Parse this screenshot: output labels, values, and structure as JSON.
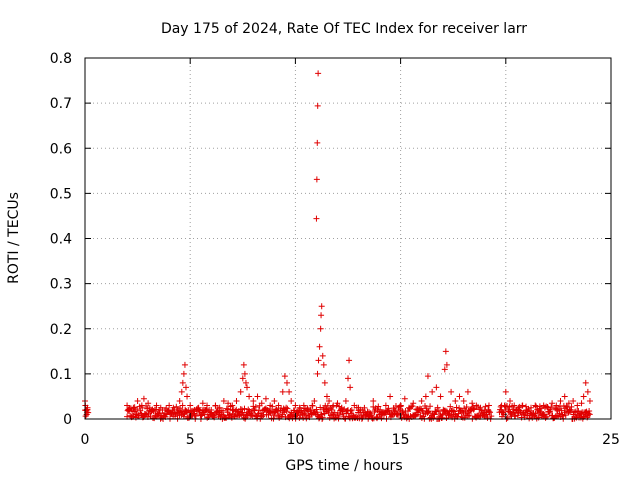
{
  "chart_data": {
    "type": "scatter",
    "title": "Day 175 of 2024, Rate Of TEC Index for receiver larr",
    "xlabel": "GPS time / hours",
    "ylabel": "ROTI / TECUs",
    "xlim": [
      0,
      25
    ],
    "ylim": [
      0,
      0.8
    ],
    "grid": true,
    "marker": "+",
    "color": "#e00000",
    "x_ticks": [
      {
        "value": 0,
        "label": "0"
      },
      {
        "value": 5,
        "label": "5"
      },
      {
        "value": 10,
        "label": "10"
      },
      {
        "value": 15,
        "label": "15"
      },
      {
        "value": 20,
        "label": "20"
      },
      {
        "value": 25,
        "label": "25"
      }
    ],
    "y_ticks": [
      {
        "value": 0,
        "label": "0"
      },
      {
        "value": 0.1,
        "label": "0.1"
      },
      {
        "value": 0.2,
        "label": "0.2"
      },
      {
        "value": 0.3,
        "label": "0.3"
      },
      {
        "value": 0.4,
        "label": "0.4"
      },
      {
        "value": 0.5,
        "label": "0.5"
      },
      {
        "value": 0.6,
        "label": "0.6"
      },
      {
        "value": 0.7,
        "label": "0.7"
      },
      {
        "value": 0.8,
        "label": "0.8"
      }
    ],
    "series": [
      {
        "name": "ROTI",
        "points": [
          [
            0.0,
            0.04
          ],
          [
            0.02,
            0.03
          ],
          [
            0.05,
            0.02
          ],
          [
            0.08,
            0.01
          ],
          [
            0.1,
            0.015
          ],
          [
            0.12,
            0.025
          ],
          [
            2.0,
            0.03
          ],
          [
            2.1,
            0.02
          ],
          [
            2.3,
            0.025
          ],
          [
            2.5,
            0.04
          ],
          [
            2.7,
            0.03
          ],
          [
            2.8,
            0.045
          ],
          [
            3.0,
            0.035
          ],
          [
            3.2,
            0.02
          ],
          [
            3.4,
            0.03
          ],
          [
            3.6,
            0.025
          ],
          [
            3.8,
            0.02
          ],
          [
            4.0,
            0.03
          ],
          [
            4.2,
            0.025
          ],
          [
            4.4,
            0.02
          ],
          [
            4.5,
            0.04
          ],
          [
            4.6,
            0.06
          ],
          [
            4.65,
            0.08
          ],
          [
            4.7,
            0.1
          ],
          [
            4.75,
            0.12
          ],
          [
            4.8,
            0.07
          ],
          [
            4.85,
            0.05
          ],
          [
            5.0,
            0.03
          ],
          [
            5.2,
            0.02
          ],
          [
            5.4,
            0.025
          ],
          [
            5.6,
            0.035
          ],
          [
            5.8,
            0.03
          ],
          [
            6.0,
            0.02
          ],
          [
            6.2,
            0.03
          ],
          [
            6.4,
            0.025
          ],
          [
            6.6,
            0.04
          ],
          [
            6.8,
            0.035
          ],
          [
            7.0,
            0.03
          ],
          [
            7.2,
            0.04
          ],
          [
            7.4,
            0.06
          ],
          [
            7.5,
            0.09
          ],
          [
            7.55,
            0.12
          ],
          [
            7.6,
            0.1
          ],
          [
            7.65,
            0.08
          ],
          [
            7.7,
            0.07
          ],
          [
            7.8,
            0.05
          ],
          [
            8.0,
            0.04
          ],
          [
            8.2,
            0.05
          ],
          [
            8.4,
            0.035
          ],
          [
            8.6,
            0.045
          ],
          [
            8.8,
            0.03
          ],
          [
            9.0,
            0.04
          ],
          [
            9.2,
            0.03
          ],
          [
            9.4,
            0.06
          ],
          [
            9.5,
            0.095
          ],
          [
            9.6,
            0.08
          ],
          [
            9.7,
            0.06
          ],
          [
            9.8,
            0.04
          ],
          [
            10.0,
            0.03
          ],
          [
            10.2,
            0.025
          ],
          [
            10.4,
            0.03
          ],
          [
            10.6,
            0.02
          ],
          [
            10.8,
            0.03
          ],
          [
            10.9,
            0.04
          ],
          [
            11.0,
            0.444
          ],
          [
            11.02,
            0.531
          ],
          [
            11.04,
            0.612
          ],
          [
            11.06,
            0.694
          ],
          [
            11.08,
            0.766
          ],
          [
            11.05,
            0.1
          ],
          [
            11.1,
            0.13
          ],
          [
            11.15,
            0.16
          ],
          [
            11.2,
            0.2
          ],
          [
            11.22,
            0.23
          ],
          [
            11.25,
            0.25
          ],
          [
            11.3,
            0.14
          ],
          [
            11.35,
            0.12
          ],
          [
            11.4,
            0.08
          ],
          [
            11.5,
            0.05
          ],
          [
            11.6,
            0.04
          ],
          [
            11.8,
            0.03
          ],
          [
            12.0,
            0.035
          ],
          [
            12.2,
            0.025
          ],
          [
            12.4,
            0.04
          ],
          [
            12.5,
            0.09
          ],
          [
            12.55,
            0.13
          ],
          [
            12.6,
            0.07
          ],
          [
            12.8,
            0.03
          ],
          [
            13.0,
            0.025
          ],
          [
            13.2,
            0.02
          ],
          [
            13.5,
            0.015
          ],
          [
            13.7,
            0.04
          ],
          [
            13.9,
            0.02
          ],
          [
            14.1,
            0.015
          ],
          [
            14.3,
            0.03
          ],
          [
            14.5,
            0.05
          ],
          [
            14.7,
            0.02
          ],
          [
            15.0,
            0.03
          ],
          [
            15.2,
            0.045
          ],
          [
            15.4,
            0.025
          ],
          [
            15.6,
            0.035
          ],
          [
            15.8,
            0.02
          ],
          [
            16.0,
            0.04
          ],
          [
            16.2,
            0.05
          ],
          [
            16.3,
            0.095
          ],
          [
            16.5,
            0.06
          ],
          [
            16.7,
            0.07
          ],
          [
            16.9,
            0.05
          ],
          [
            17.1,
            0.11
          ],
          [
            17.15,
            0.15
          ],
          [
            17.2,
            0.12
          ],
          [
            17.4,
            0.06
          ],
          [
            17.6,
            0.04
          ],
          [
            17.8,
            0.05
          ],
          [
            18.0,
            0.04
          ],
          [
            18.2,
            0.06
          ],
          [
            18.4,
            0.035
          ],
          [
            18.6,
            0.03
          ],
          [
            18.8,
            0.025
          ],
          [
            19.0,
            0.02
          ],
          [
            19.2,
            0.03
          ],
          [
            19.8,
            0.03
          ],
          [
            20.0,
            0.06
          ],
          [
            20.2,
            0.04
          ],
          [
            20.4,
            0.03
          ],
          [
            20.6,
            0.025
          ],
          [
            20.8,
            0.03
          ],
          [
            21.0,
            0.02
          ],
          [
            21.2,
            0.025
          ],
          [
            21.4,
            0.03
          ],
          [
            21.6,
            0.02
          ],
          [
            21.8,
            0.03
          ],
          [
            22.0,
            0.025
          ],
          [
            22.2,
            0.035
          ],
          [
            22.4,
            0.03
          ],
          [
            22.6,
            0.04
          ],
          [
            22.8,
            0.05
          ],
          [
            23.0,
            0.035
          ],
          [
            23.2,
            0.04
          ],
          [
            23.4,
            0.03
          ],
          [
            23.6,
            0.035
          ],
          [
            23.7,
            0.05
          ],
          [
            23.8,
            0.08
          ],
          [
            23.9,
            0.06
          ],
          [
            24.0,
            0.04
          ]
        ]
      }
    ],
    "band": {
      "segments": [
        [
          0.0,
          0.15
        ],
        [
          2.0,
          19.3
        ],
        [
          19.7,
          24.0
        ]
      ],
      "base_max": 0.03
    }
  }
}
